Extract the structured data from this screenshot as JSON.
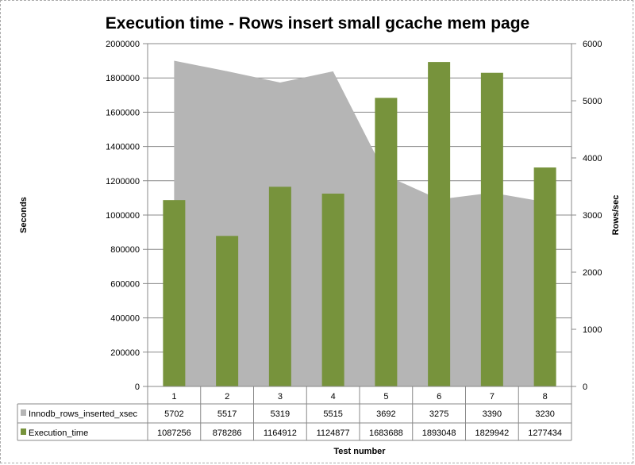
{
  "chart_data": {
    "type": "bar+area",
    "title": "Execution time - Rows insert small gcache mem page",
    "xlabel": "Test number",
    "ylabel_left": "Seconds",
    "ylabel_right": "Rows/sec",
    "categories": [
      "1",
      "2",
      "3",
      "4",
      "5",
      "6",
      "7",
      "8"
    ],
    "ylim_left": [
      0,
      2000000
    ],
    "yticks_left": [
      "0",
      "200000",
      "400000",
      "600000",
      "800000",
      "1000000",
      "1200000",
      "1400000",
      "1600000",
      "1800000",
      "2000000"
    ],
    "ylim_right": [
      0,
      6000
    ],
    "yticks_right": [
      "0",
      "1000",
      "2000",
      "3000",
      "4000",
      "5000",
      "6000"
    ],
    "grid": true,
    "legend": "data-table",
    "series": [
      {
        "name": "Innodb_rows_inserted_xsec",
        "type": "area",
        "axis": "right",
        "color": "#b5b5b5",
        "values": [
          5702,
          5517,
          5319,
          5515,
          3692,
          3275,
          3390,
          3230
        ]
      },
      {
        "name": "Execution_time",
        "type": "bar",
        "axis": "left",
        "color": "#77933c",
        "values": [
          1087256,
          878286,
          1164912,
          1124877,
          1683688,
          1893048,
          1829942,
          1277434
        ]
      }
    ]
  }
}
